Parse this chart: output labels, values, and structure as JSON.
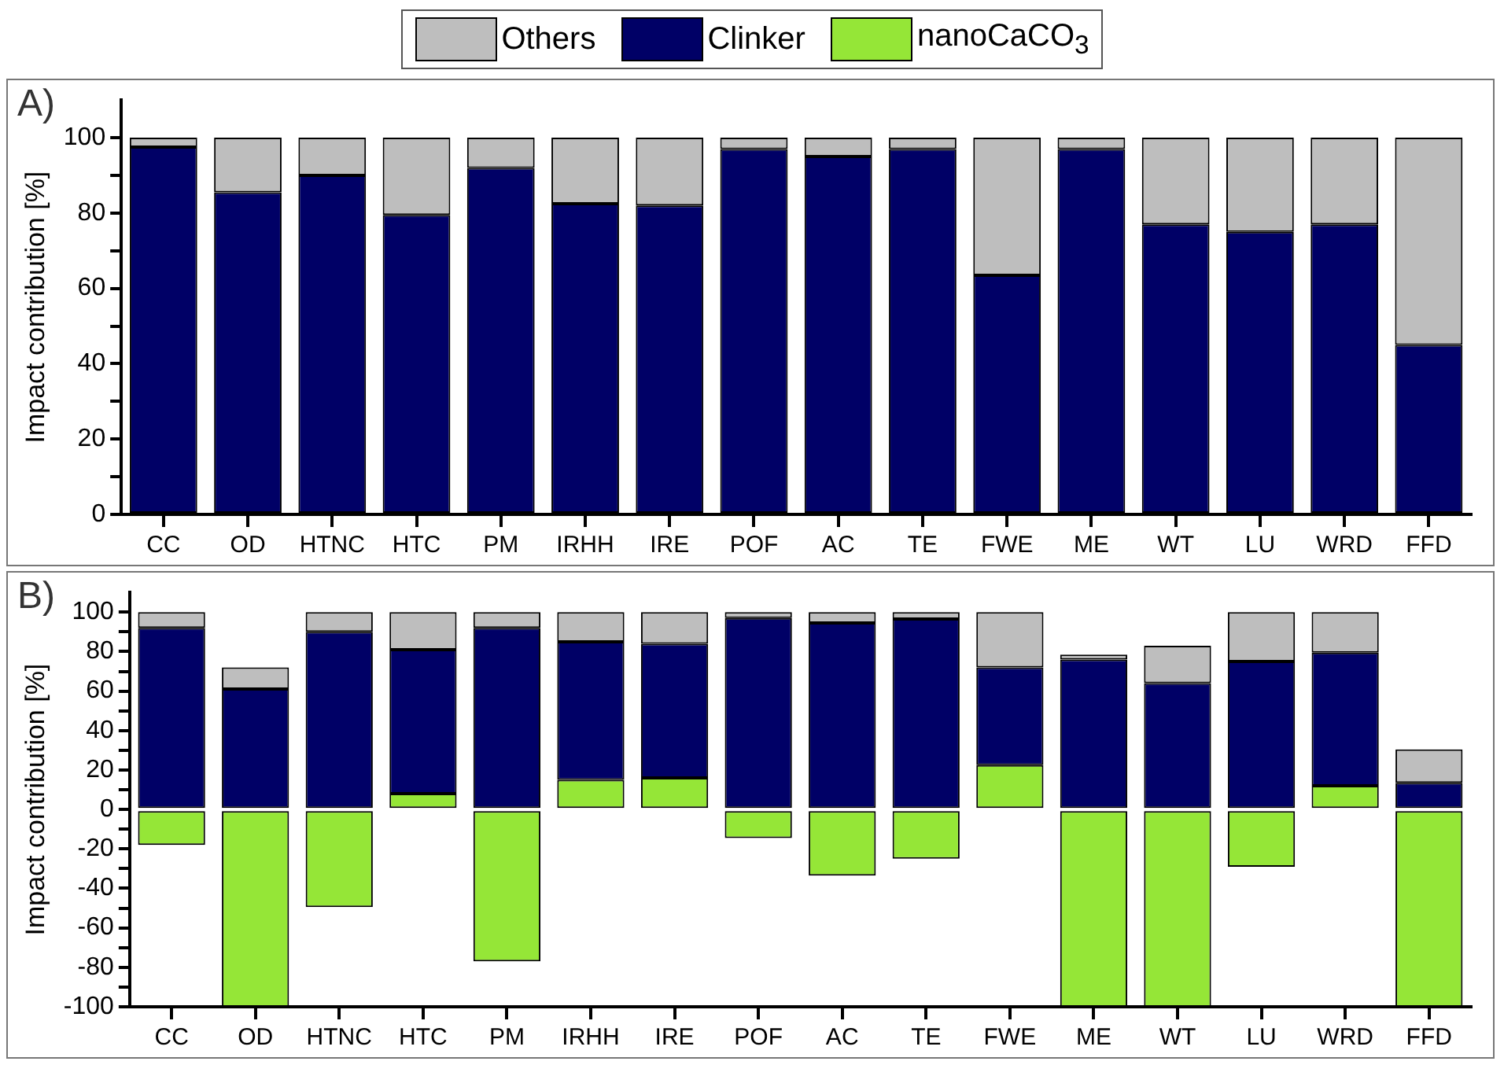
{
  "chart_data": [
    {
      "type": "bar",
      "stacked": true,
      "annotations": [
        "A)"
      ],
      "ylabel": "Impact contribution [%]",
      "legend": false,
      "grid": false,
      "categories": [
        "CC",
        "OD",
        "HTNC",
        "HTC",
        "PM",
        "IRHH",
        "IRE",
        "POF",
        "AC",
        "TE",
        "FWE",
        "ME",
        "WT",
        "LU",
        "WRD",
        "FFD"
      ],
      "series": [
        {
          "color": "#000066",
          "values": [
            97.5,
            85.5,
            90,
            79.5,
            92,
            82.5,
            82,
            97,
            95,
            97,
            63.5,
            97,
            77,
            75,
            77,
            45
          ]
        },
        {
          "color": "#bebebe",
          "values": [
            2.5,
            14.5,
            10,
            20.5,
            8,
            17.5,
            18,
            3,
            5,
            3,
            36.5,
            3,
            23,
            25,
            23,
            55
          ]
        }
      ],
      "ylim": [
        0,
        110
      ],
      "yticks": [
        0,
        {
          "value": 10,
          "label": null
        },
        20,
        {
          "value": 30,
          "label": null
        },
        40,
        {
          "value": 50,
          "label": null
        },
        60,
        {
          "value": 70,
          "label": null
        },
        80,
        {
          "value": 90,
          "label": null
        },
        100
      ]
    },
    {
      "type": "bar",
      "stacked": true,
      "annotations": [
        "B)"
      ],
      "ylabel": "Impact contribution [%]",
      "legend": "top",
      "grid": false,
      "categories": [
        "CC",
        "OD",
        "HTNC",
        "HTC",
        "PM",
        "IRHH",
        "IRE",
        "POF",
        "AC",
        "TE",
        "FWE",
        "ME",
        "WT",
        "LU",
        "WRD",
        "FFD"
      ],
      "series": [
        {
          "name": "nanoCaCO$_{3}$",
          "color": "#95e637",
          "values": [
            -18,
            -100,
            -49.5,
            8,
            -77,
            15,
            16,
            -14.5,
            -33.5,
            -25,
            22.5,
            -100,
            -100,
            -29,
            12,
            -100
          ]
        },
        {
          "name": "Clinker",
          "color": "#000066",
          "values": [
            92,
            61,
            90,
            73,
            92,
            70,
            68,
            97,
            94.5,
            96.5,
            49.5,
            76,
            64,
            75,
            67.5,
            13.5
          ]
        },
        {
          "name": "Others",
          "color": "#bebebe",
          "values": [
            8,
            11,
            10,
            19,
            8,
            15,
            16,
            3,
            5.5,
            3.5,
            28,
            2.5,
            19,
            25,
            20.5,
            17
          ]
        }
      ],
      "ylim": [
        -100,
        110
      ],
      "yticks": [
        -100,
        {
          "value": -90,
          "label": null
        },
        -80,
        {
          "value": -70,
          "label": null
        },
        -60,
        {
          "value": -50,
          "label": null
        },
        -40,
        {
          "value": -30,
          "label": null
        },
        -20,
        {
          "value": -10,
          "label": null
        },
        0,
        {
          "value": 10,
          "label": null
        },
        20,
        {
          "value": 30,
          "label": null
        },
        40,
        {
          "value": 50,
          "label": null
        },
        60,
        {
          "value": 70,
          "label": null
        },
        80,
        {
          "value": 90,
          "label": null
        },
        100
      ]
    }
  ]
}
